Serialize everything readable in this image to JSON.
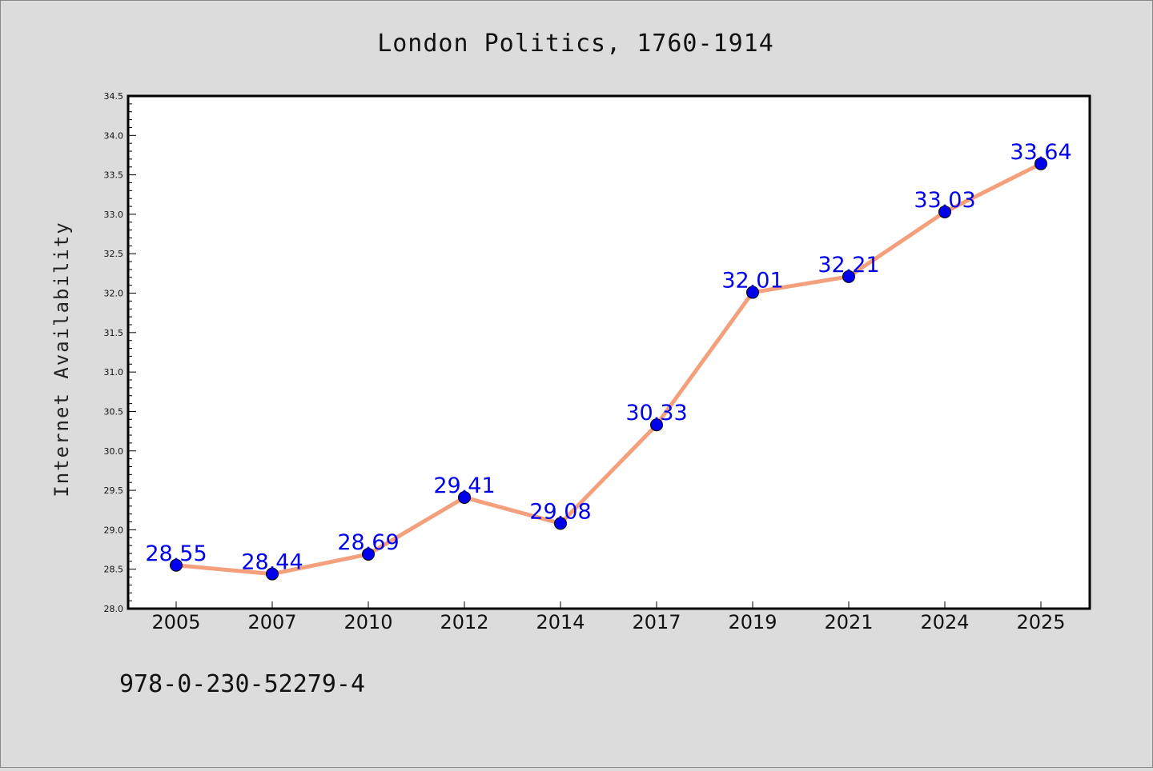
{
  "chart_data": {
    "type": "line",
    "title": "London Politics, 1760-1914",
    "xlabel": "",
    "ylabel": "Internet Availability",
    "categories": [
      "2005",
      "2007",
      "2010",
      "2012",
      "2014",
      "2017",
      "2019",
      "2021",
      "2024",
      "2025"
    ],
    "values": [
      28.55,
      28.44,
      28.69,
      29.41,
      29.08,
      30.33,
      32.01,
      32.21,
      33.03,
      33.64
    ],
    "value_labels": [
      "28.55",
      "28.44",
      "28.69",
      "29.41",
      "29.08",
      "30.33",
      "32.01",
      "32.21",
      "33.03",
      "33.64"
    ],
    "ylim": [
      28.0,
      34.5
    ],
    "yticks": [
      "28.0",
      "28.5",
      "29.0",
      "29.5",
      "30.0",
      "30.5",
      "31.0",
      "31.5",
      "32.0",
      "32.5",
      "33.0",
      "33.5",
      "34.0",
      "34.5"
    ],
    "grid": false,
    "colors": {
      "line": "#f4a07c",
      "marker": "#0000ee",
      "label": "#0000ee",
      "background": "#dcdcdc",
      "plot_bg": "#ffffff"
    }
  },
  "footer": {
    "isbn": "978-0-230-52279-4"
  }
}
